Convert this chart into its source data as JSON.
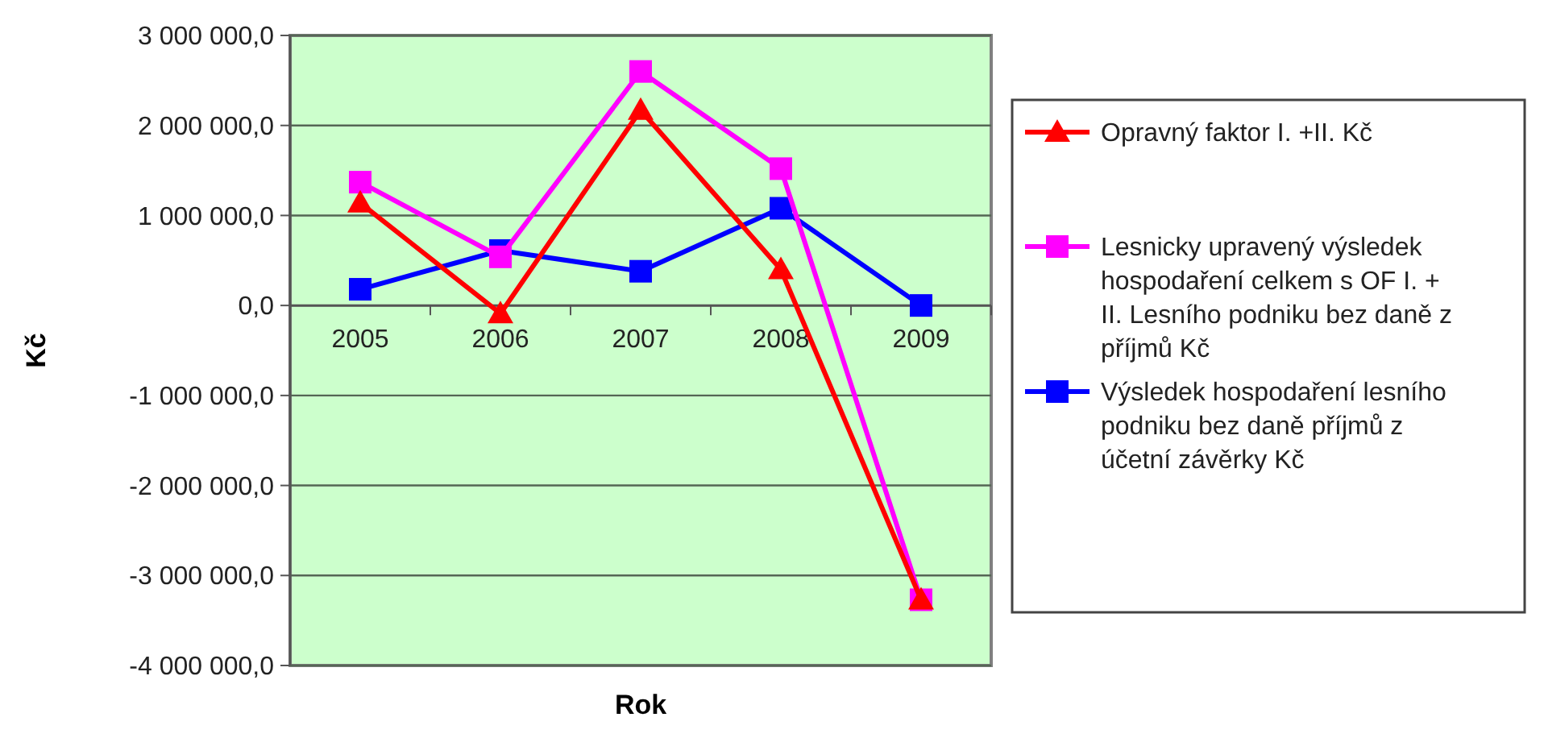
{
  "chart_data": {
    "type": "line",
    "xlabel": "Rok",
    "ylabel": "Kč",
    "categories": [
      "2005",
      "2006",
      "2007",
      "2008",
      "2009"
    ],
    "series": [
      {
        "name": "Opravný faktor I. +II. Kč",
        "color": "#ff0000",
        "marker": "triangle",
        "values": [
          1140000,
          -90000,
          2170000,
          400000,
          -3270000
        ]
      },
      {
        "name": "Lesnicky upravený výsledek hospodaření celkem s OF I. + II. Lesního podniku bez daně z příjmů Kč",
        "color": "#ff00ff",
        "marker": "square",
        "values": [
          1370000,
          540000,
          2600000,
          1520000,
          -3270000
        ]
      },
      {
        "name": "Výsledek hospodaření lesního podniku bez daně příjmů z účetní závěrky Kč",
        "color": "#0000ff",
        "marker": "square",
        "values": [
          180000,
          610000,
          380000,
          1080000,
          0
        ]
      }
    ],
    "ylim": [
      -4000000,
      3000000
    ],
    "yticks": [
      {
        "value": -4000000,
        "label": "-4 000 000,0"
      },
      {
        "value": -3000000,
        "label": "-3 000 000,0"
      },
      {
        "value": -2000000,
        "label": "-2 000 000,0"
      },
      {
        "value": -1000000,
        "label": "-1 000 000,0"
      },
      {
        "value": 0,
        "label": "0,0"
      },
      {
        "value": 1000000,
        "label": "1 000 000,0"
      },
      {
        "value": 2000000,
        "label": "2 000 000,0"
      },
      {
        "value": 3000000,
        "label": "3 000 000,0"
      }
    ],
    "grid": "y",
    "legend": "right",
    "line_style": "solid"
  }
}
